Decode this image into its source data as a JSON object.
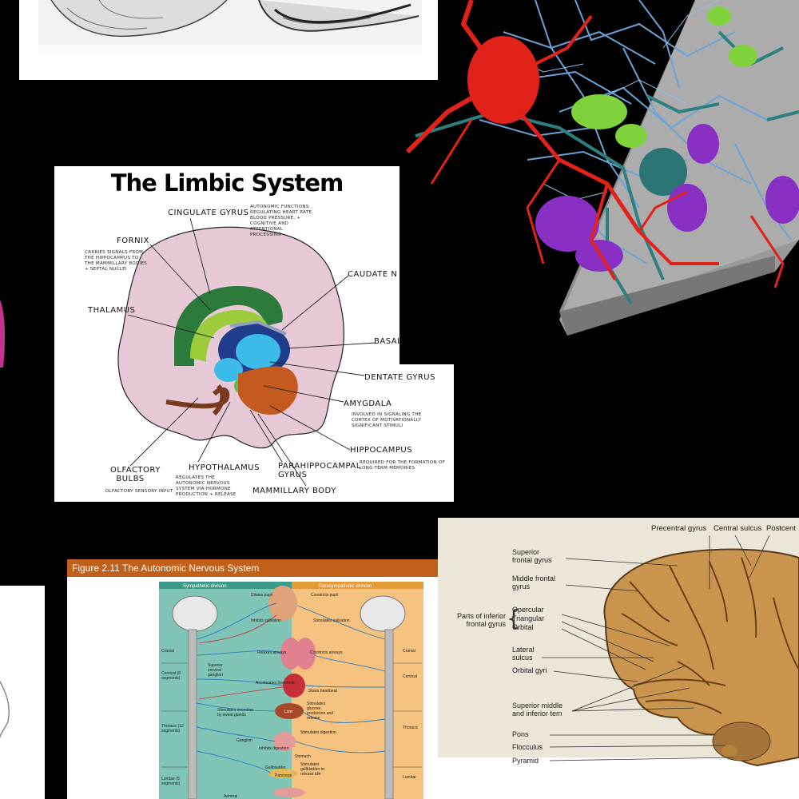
{
  "limbic": {
    "title": "The Limbic System",
    "labels": {
      "cingulate": "CINGULATE GYRUS",
      "cingulate_note": "AUTONOMIC FUNCTIONS REGULATING HEART RATE, BLOOD PRESSURE, + COGNITIVE AND ATTENTIONAL PROCESSING",
      "fornix": "FORNIX",
      "fornix_note": "CARRIES SIGNALS FROM THE HIPPOCAMPUS TO THE MAMMILLARY BODIES + SEPTAL NUCLEI",
      "caudate": "CAUDATE N",
      "thalamus": "THALAMUS",
      "basal": "BASAL",
      "dentate": "DENTATE GYRUS",
      "amygdala": "AMYGDALA",
      "amygdala_note": "INVOLVED IN SIGNALING THE CORTEX OF MOTIVATIONALLY SIGNIFICANT STIMULI",
      "hippocampus": "HIPPOCAMPUS",
      "hippocampus_note": "REQUIRED FOR THE FORMATION OF LONG-TERM MEMORIES",
      "olfactory": "OLFACTORY BULBS",
      "olfactory_note": "OLFACTORY SENSORY INPUT",
      "hypothalamus": "HYPOTHALAMUS",
      "hypothalamus_note": "REGULATES THE AUTONOMIC NERVOUS SYSTEM VIA HORMONE PRODUCTION + RELEASE",
      "parahippocampal": "PARAHIPPOCAMPAL GYRUS",
      "mammillary": "MAMMILLARY BODY"
    }
  },
  "autonomic": {
    "header": "Figure 2.11  The Autonomic Nervous System",
    "sympathetic": "Sympathetic division",
    "parasympathetic": "Parasympathetic division",
    "left_regions": [
      "Cranial",
      "Cervical (8 segments)",
      "Thoracic (12 segments)",
      "Lumbar (5 segments)"
    ],
    "right_regions": [
      "Cranial",
      "Cervical",
      "Thoracic",
      "Lumbar"
    ],
    "notes": [
      "Dilates pupil",
      "Constricts pupil",
      "Inhibits salivation",
      "Stimulates salivation",
      "Relaxes airways",
      "Constricts airways",
      "Accelerates heartbeat",
      "Slows heartbeat",
      "Stimulates glucose production and release",
      "Inhibits digestion",
      "Stimulates digestion",
      "Stimulates secretion by sweat glands",
      "Superior cervical ganglion",
      "Ganglion",
      "Stomach",
      "Gallbladder",
      "Stimulates gallbladder to release bile",
      "Liver",
      "Pancreas",
      "Adrenal"
    ]
  },
  "cortex": {
    "top": [
      "Precentral gyrus",
      "Central sulcus",
      "Postcent"
    ],
    "left": [
      "Superior frontal gyrus",
      "Middle frontal gyrus",
      "Opercular",
      "Triangular",
      "Orbital",
      "Parts of inferior frontal gyrus",
      "Lateral sulcus",
      "Orbital gyri",
      "Superior middle and inferior tem",
      "Pons",
      "Flocculus",
      "Pyramid"
    ]
  },
  "colors": {
    "background": "#000000",
    "limbic_pink": "#e6c8d6",
    "autonomic_orange": "#c0601a",
    "cortex_bg": "#ebe6d8"
  }
}
